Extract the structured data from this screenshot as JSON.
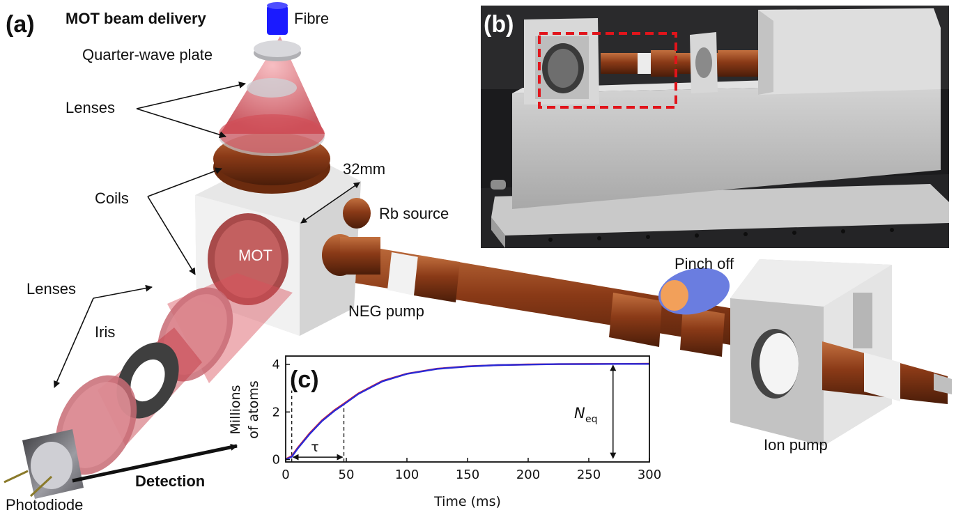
{
  "panels": {
    "a": "(a)",
    "b": "(b)",
    "c": "(c)"
  },
  "labels": {
    "mot_beam_delivery": "MOT beam delivery",
    "fibre": "Fibre",
    "quarter_wave_plate": "Quarter-wave plate",
    "lenses_top": "Lenses",
    "coils": "Coils",
    "dimension": "32mm",
    "rb_source": "Rb source",
    "mot": "MOT",
    "lenses_bottom": "Lenses",
    "iris": "Iris",
    "neg_pump": "NEG pump",
    "pinch_off": "Pinch off",
    "ion_pump": "Ion pump",
    "photodiode": "Photodiode",
    "detection": "Detection"
  },
  "colors": {
    "copper": "#8a3a17",
    "copper_light": "#b8612e",
    "aluminium": "#e6e6e6",
    "laser": "#d9505a",
    "fibre": "#1a1aff",
    "pinch_off": "#6a7de0",
    "trace_red": "#e3232b",
    "trace_blue": "#2a2ad6"
  },
  "chart_data": {
    "type": "line",
    "xlabel": "Time (ms)",
    "ylabel_line1": "Millions",
    "ylabel_line2": "of atoms",
    "xlim": [
      0,
      300
    ],
    "ylim": [
      -0.1,
      4.35
    ],
    "xticks": [
      0,
      50,
      100,
      150,
      200,
      250,
      300
    ],
    "yticks": [
      0,
      2,
      4
    ],
    "annotations": {
      "tau": "τ",
      "n_eq_main": "N",
      "n_eq_sub": "eq"
    },
    "markers": {
      "t_start": 5,
      "t_tau": 48,
      "n_eq": 4.02,
      "n_eq_x": 270
    },
    "series": [
      {
        "color": "#e3232b",
        "x": [
          0,
          5,
          10,
          20,
          30,
          40,
          48,
          60,
          80,
          100,
          125,
          150,
          175,
          200,
          225,
          250,
          275,
          300
        ],
        "y": [
          0.02,
          0.15,
          0.5,
          1.12,
          1.65,
          2.07,
          2.35,
          2.78,
          3.31,
          3.61,
          3.82,
          3.92,
          3.97,
          4.0,
          4.01,
          4.02,
          4.02,
          4.03
        ]
      },
      {
        "color": "#2a2ad6",
        "x": [
          0,
          5,
          10,
          20,
          30,
          40,
          48,
          60,
          80,
          100,
          125,
          150,
          175,
          200,
          225,
          250,
          275,
          300
        ],
        "y": [
          0.0,
          0.12,
          0.47,
          1.09,
          1.62,
          2.04,
          2.32,
          2.76,
          3.29,
          3.6,
          3.81,
          3.91,
          3.97,
          3.99,
          4.01,
          4.01,
          4.02,
          4.02
        ]
      }
    ]
  }
}
